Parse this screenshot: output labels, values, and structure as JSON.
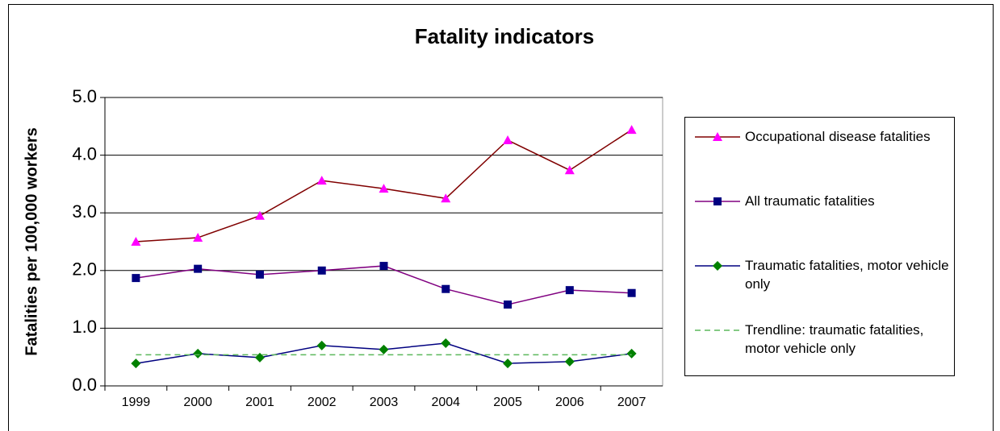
{
  "chart_data": {
    "type": "line",
    "title": "Fatality indicators",
    "y_label": "Fatalities per 100,000 workers",
    "categories": [
      "1999",
      "2000",
      "2001",
      "2002",
      "2003",
      "2004",
      "2005",
      "2006",
      "2007"
    ],
    "series": [
      {
        "name": "Occupational disease fatalities",
        "color": "#800000",
        "marker": "triangle",
        "marker_color": "#ff00ff",
        "dash": false,
        "values": [
          2.5,
          2.57,
          2.95,
          3.56,
          3.42,
          3.25,
          4.26,
          3.74,
          4.44
        ]
      },
      {
        "name": "All traumatic fatalities",
        "color": "#800080",
        "marker": "square",
        "marker_color": "#000080",
        "dash": false,
        "values": [
          1.87,
          2.03,
          1.93,
          2.0,
          2.08,
          1.68,
          1.41,
          1.66,
          1.61
        ]
      },
      {
        "name": "Traumatic fatalities, motor vehicle only",
        "color": "#000080",
        "marker": "diamond",
        "marker_color": "#008000",
        "dash": false,
        "values": [
          0.39,
          0.56,
          0.49,
          0.7,
          0.63,
          0.74,
          0.39,
          0.42,
          0.56
        ]
      },
      {
        "name": "Trendline: traumatic fatalities, motor vehicle only",
        "color": "#5cb85c",
        "marker": "none",
        "marker_color": "#5cb85c",
        "dash": true,
        "values": [
          0.54,
          0.54,
          0.54,
          0.54,
          0.54,
          0.54,
          0.54,
          0.54,
          0.54
        ]
      }
    ],
    "ylim": [
      0,
      5
    ],
    "yticks": [
      {
        "value": 0,
        "label": "0.0"
      },
      {
        "value": 1,
        "label": "1.0"
      },
      {
        "value": 2,
        "label": "2.0"
      },
      {
        "value": 3,
        "label": "3.0"
      },
      {
        "value": 4,
        "label": "4.0"
      },
      {
        "value": 5,
        "label": "5.0"
      }
    ],
    "grid": true,
    "legend": "right"
  }
}
